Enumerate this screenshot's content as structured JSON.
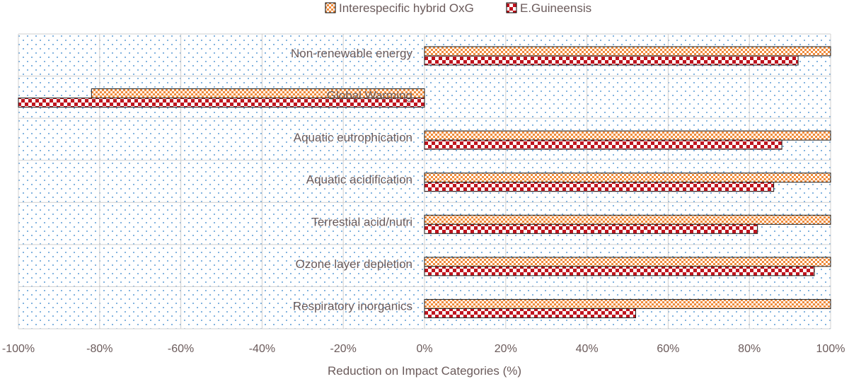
{
  "chart_data": {
    "type": "bar",
    "orientation": "horizontal",
    "title": "",
    "xlabel": "Reduction on Impact Categories (%)",
    "ylabel": "",
    "xlim": [
      -100,
      100
    ],
    "x_ticks": [
      -100,
      -80,
      -60,
      -40,
      -20,
      0,
      20,
      40,
      60,
      80,
      100
    ],
    "x_tick_labels": [
      "-100%",
      "-80%",
      "-60%",
      "-40%",
      "-20%",
      "0%",
      "20%",
      "40%",
      "60%",
      "80%",
      "100%"
    ],
    "categories": [
      "Non-renewable energy",
      "Global Warming",
      "Aquatic eutrophication",
      "Aquatic acidification",
      "Terrestial acid/nutri",
      "Ozone layer depletion",
      "Respiratory inorganics"
    ],
    "series": [
      {
        "name": "Interespecific hybrid OxG",
        "color": "#f08c3c",
        "values": [
          100,
          -82,
          100,
          100,
          100,
          100,
          100
        ]
      },
      {
        "name": "E.Guineensis",
        "color": "#c0141e",
        "values": [
          92,
          -100,
          88,
          86,
          82,
          96,
          52
        ]
      }
    ],
    "legend_position": "top",
    "grid": true
  }
}
